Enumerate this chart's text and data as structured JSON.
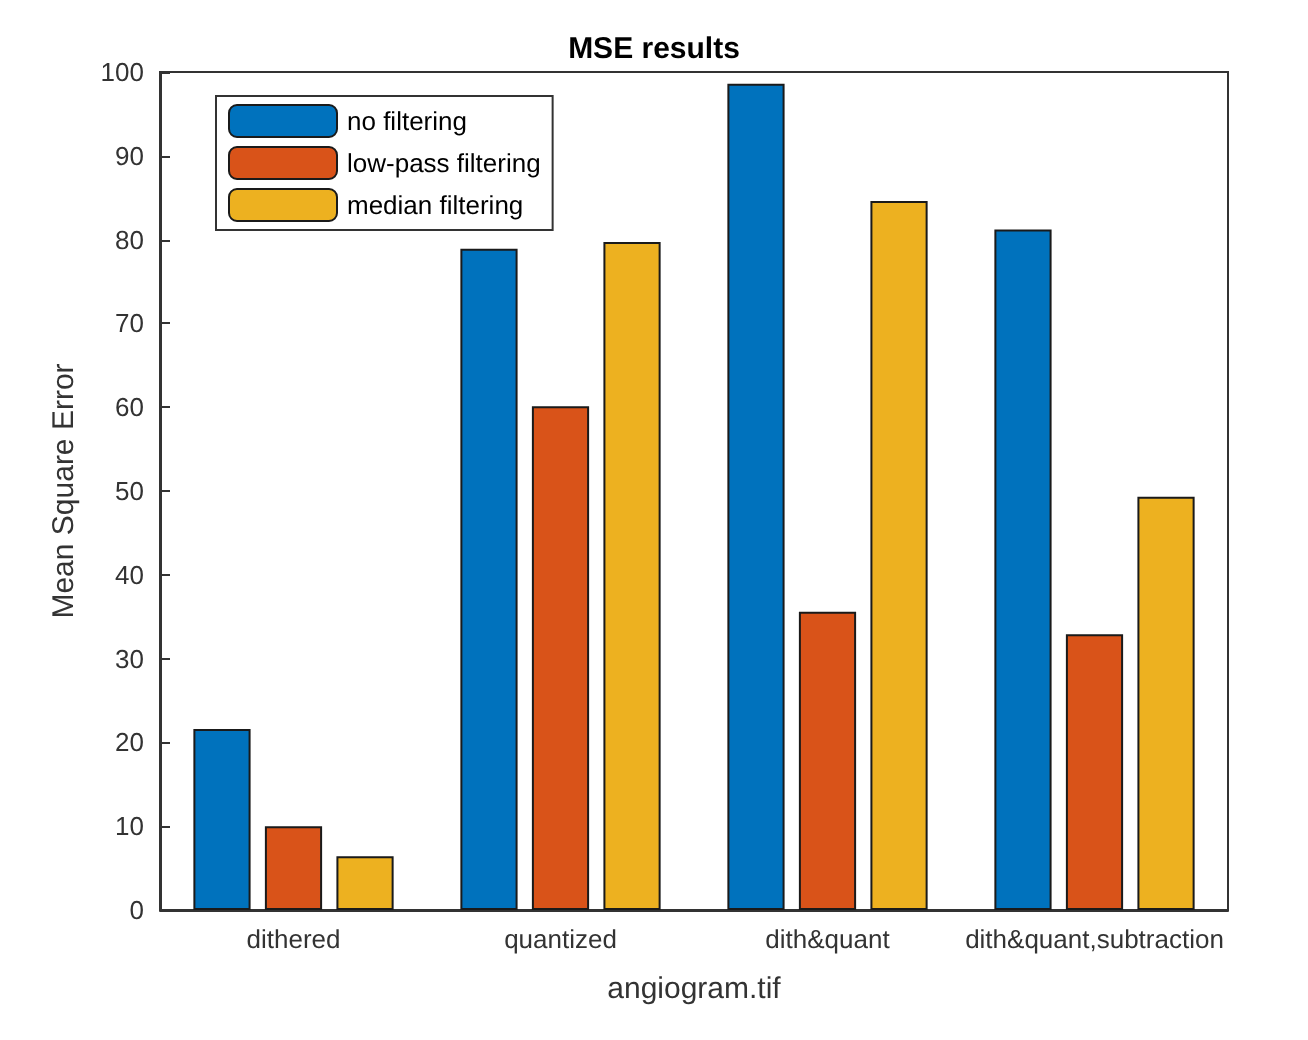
{
  "chart_data": {
    "type": "bar",
    "title": "MSE results",
    "xlabel": "angiogram.tif",
    "ylabel": "Mean Square Error",
    "categories": [
      "dithered",
      "quantized",
      "dith&quant",
      "dith&quant,subtraction"
    ],
    "series": [
      {
        "name": "no filtering",
        "color": "#0072bd",
        "values": [
          21.6,
          78.9,
          98.6,
          81.2
        ]
      },
      {
        "name": "low-pass filtering",
        "color": "#d95319",
        "values": [
          10.0,
          60.1,
          35.6,
          32.9
        ]
      },
      {
        "name": "median filtering",
        "color": "#edb120",
        "values": [
          6.4,
          79.7,
          84.6,
          49.3
        ]
      }
    ],
    "ylim": [
      0,
      100
    ],
    "yticks": [
      0,
      10,
      20,
      30,
      40,
      50,
      60,
      70,
      80,
      90,
      100
    ],
    "grid": false,
    "legend": "top left"
  }
}
